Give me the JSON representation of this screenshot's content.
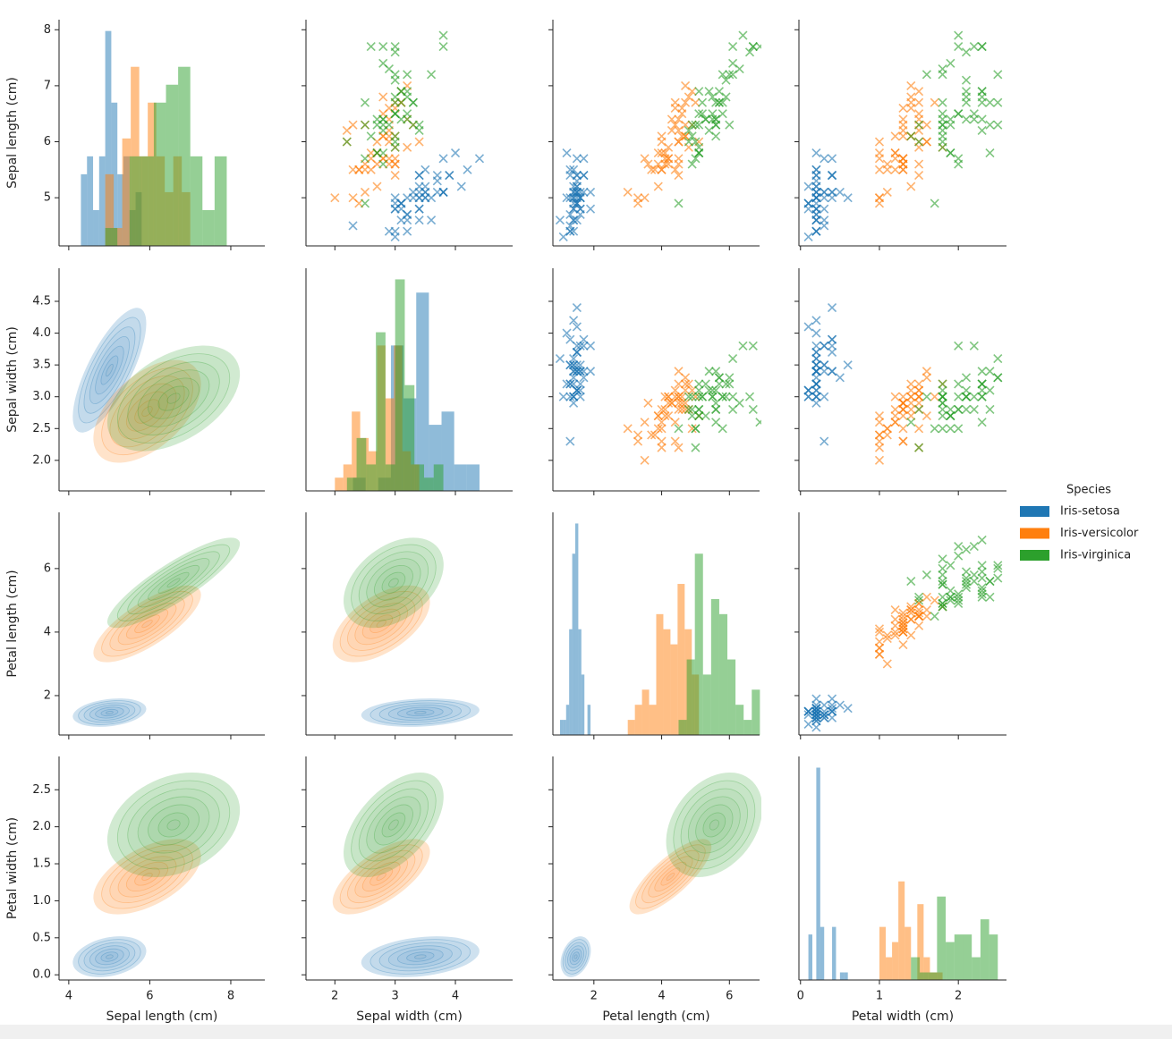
{
  "chart_data": {
    "type": "pairplot",
    "variables": [
      "Sepal length (cm)",
      "Sepal width (cm)",
      "Petal length (cm)",
      "Petal width (cm)"
    ],
    "legend_title": "Species",
    "xaxes": [
      {
        "lim": [
          3.76,
          8.84
        ],
        "ticks": [
          4,
          6,
          8
        ]
      },
      {
        "lim": [
          1.52,
          4.95
        ],
        "ticks": [
          2,
          3,
          4
        ]
      },
      {
        "lim": [
          0.79,
          6.89
        ],
        "ticks": [
          2,
          4,
          6
        ]
      },
      {
        "lim": [
          -0.02,
          2.61
        ],
        "ticks": [
          0,
          1,
          2
        ]
      }
    ],
    "yaxes": [
      {
        "lim": [
          4.14,
          8.18
        ],
        "ticks": [
          5,
          6,
          7,
          8
        ]
      },
      {
        "lim": [
          1.52,
          5.02
        ],
        "ticks": [
          {
            "value": 2,
            "label": "2.0"
          },
          2.5,
          {
            "value": 3,
            "label": "3.0"
          },
          3.5,
          {
            "value": 4,
            "label": "4.0"
          },
          4.5
        ]
      },
      {
        "lim": [
          0.76,
          7.77
        ],
        "ticks": [
          2,
          4,
          6
        ]
      },
      {
        "lim": [
          -0.07,
          2.95
        ],
        "ticks": [
          {
            "value": 0,
            "label": "0.0"
          },
          0.5,
          {
            "value": 1,
            "label": "1.0"
          },
          1.5,
          {
            "value": 2,
            "label": "2.0"
          },
          2.5
        ]
      }
    ],
    "series": [
      {
        "name": "Iris-setosa",
        "color": "#1f77b4",
        "values": [
          [
            5.1,
            3.5,
            1.4,
            0.2
          ],
          [
            4.9,
            3.0,
            1.4,
            0.2
          ],
          [
            4.7,
            3.2,
            1.3,
            0.2
          ],
          [
            4.6,
            3.1,
            1.5,
            0.2
          ],
          [
            5.0,
            3.6,
            1.4,
            0.2
          ],
          [
            5.4,
            3.9,
            1.7,
            0.4
          ],
          [
            4.6,
            3.4,
            1.4,
            0.3
          ],
          [
            5.0,
            3.4,
            1.5,
            0.2
          ],
          [
            4.4,
            2.9,
            1.4,
            0.2
          ],
          [
            4.9,
            3.1,
            1.5,
            0.1
          ],
          [
            5.4,
            3.7,
            1.5,
            0.2
          ],
          [
            4.8,
            3.4,
            1.6,
            0.2
          ],
          [
            4.8,
            3.0,
            1.4,
            0.1
          ],
          [
            4.3,
            3.0,
            1.1,
            0.1
          ],
          [
            5.8,
            4.0,
            1.2,
            0.2
          ],
          [
            5.7,
            4.4,
            1.5,
            0.4
          ],
          [
            5.4,
            3.9,
            1.3,
            0.4
          ],
          [
            5.1,
            3.5,
            1.4,
            0.3
          ],
          [
            5.7,
            3.8,
            1.7,
            0.3
          ],
          [
            5.1,
            3.8,
            1.5,
            0.3
          ],
          [
            5.4,
            3.4,
            1.7,
            0.2
          ],
          [
            5.1,
            3.7,
            1.5,
            0.4
          ],
          [
            4.6,
            3.6,
            1.0,
            0.2
          ],
          [
            5.1,
            3.3,
            1.7,
            0.5
          ],
          [
            4.8,
            3.4,
            1.9,
            0.2
          ],
          [
            5.0,
            3.0,
            1.6,
            0.2
          ],
          [
            5.0,
            3.4,
            1.6,
            0.4
          ],
          [
            5.2,
            3.5,
            1.5,
            0.2
          ],
          [
            5.2,
            3.4,
            1.4,
            0.2
          ],
          [
            4.7,
            3.2,
            1.6,
            0.2
          ],
          [
            4.8,
            3.1,
            1.6,
            0.2
          ],
          [
            5.4,
            3.4,
            1.5,
            0.4
          ],
          [
            5.2,
            4.1,
            1.5,
            0.1
          ],
          [
            5.5,
            4.2,
            1.4,
            0.2
          ],
          [
            4.9,
            3.1,
            1.5,
            0.1
          ],
          [
            5.0,
            3.2,
            1.2,
            0.2
          ],
          [
            5.5,
            3.5,
            1.3,
            0.2
          ],
          [
            4.9,
            3.1,
            1.5,
            0.1
          ],
          [
            4.4,
            3.0,
            1.3,
            0.2
          ],
          [
            5.1,
            3.4,
            1.5,
            0.2
          ],
          [
            5.0,
            3.5,
            1.3,
            0.3
          ],
          [
            4.5,
            2.3,
            1.3,
            0.3
          ],
          [
            4.4,
            3.2,
            1.3,
            0.2
          ],
          [
            5.0,
            3.5,
            1.6,
            0.6
          ],
          [
            5.1,
            3.8,
            1.9,
            0.4
          ],
          [
            4.8,
            3.0,
            1.4,
            0.3
          ],
          [
            5.1,
            3.8,
            1.6,
            0.2
          ],
          [
            4.6,
            3.2,
            1.4,
            0.2
          ],
          [
            5.3,
            3.7,
            1.5,
            0.2
          ],
          [
            5.0,
            3.3,
            1.4,
            0.2
          ]
        ]
      },
      {
        "name": "Iris-versicolor",
        "color": "#ff7f0e",
        "values": [
          [
            7.0,
            3.2,
            4.7,
            1.4
          ],
          [
            6.4,
            3.2,
            4.5,
            1.5
          ],
          [
            6.9,
            3.1,
            4.9,
            1.5
          ],
          [
            5.5,
            2.3,
            4.0,
            1.3
          ],
          [
            6.5,
            2.8,
            4.6,
            1.5
          ],
          [
            5.7,
            2.8,
            4.5,
            1.3
          ],
          [
            6.3,
            3.3,
            4.7,
            1.6
          ],
          [
            4.9,
            2.4,
            3.3,
            1.0
          ],
          [
            6.6,
            2.9,
            4.6,
            1.3
          ],
          [
            5.2,
            2.7,
            3.9,
            1.4
          ],
          [
            5.0,
            2.0,
            3.5,
            1.0
          ],
          [
            5.9,
            3.0,
            4.2,
            1.5
          ],
          [
            6.0,
            2.2,
            4.0,
            1.0
          ],
          [
            6.1,
            2.9,
            4.7,
            1.4
          ],
          [
            5.6,
            2.9,
            3.6,
            1.3
          ],
          [
            6.7,
            3.1,
            4.4,
            1.4
          ],
          [
            5.6,
            3.0,
            4.5,
            1.5
          ],
          [
            5.8,
            2.7,
            4.1,
            1.0
          ],
          [
            6.2,
            2.2,
            4.5,
            1.5
          ],
          [
            5.6,
            2.5,
            3.9,
            1.1
          ],
          [
            5.9,
            3.2,
            4.8,
            1.8
          ],
          [
            6.1,
            2.8,
            4.0,
            1.3
          ],
          [
            6.3,
            2.5,
            4.9,
            1.5
          ],
          [
            6.1,
            2.8,
            4.7,
            1.2
          ],
          [
            6.4,
            2.9,
            4.3,
            1.3
          ],
          [
            6.6,
            3.0,
            4.4,
            1.4
          ],
          [
            6.8,
            2.8,
            4.8,
            1.4
          ],
          [
            6.7,
            3.0,
            5.0,
            1.7
          ],
          [
            6.0,
            2.9,
            4.5,
            1.5
          ],
          [
            5.7,
            2.6,
            3.5,
            1.0
          ],
          [
            5.5,
            2.4,
            3.8,
            1.1
          ],
          [
            5.5,
            2.4,
            3.7,
            1.0
          ],
          [
            5.8,
            2.7,
            3.9,
            1.2
          ],
          [
            6.0,
            2.7,
            5.1,
            1.6
          ],
          [
            5.4,
            3.0,
            4.5,
            1.5
          ],
          [
            6.0,
            3.4,
            4.5,
            1.6
          ],
          [
            6.7,
            3.1,
            4.7,
            1.5
          ],
          [
            6.3,
            2.3,
            4.4,
            1.3
          ],
          [
            5.6,
            3.0,
            4.1,
            1.3
          ],
          [
            5.5,
            2.5,
            4.0,
            1.3
          ],
          [
            5.5,
            2.6,
            4.4,
            1.2
          ],
          [
            6.1,
            3.0,
            4.6,
            1.4
          ],
          [
            5.8,
            2.6,
            4.0,
            1.2
          ],
          [
            5.0,
            2.3,
            3.3,
            1.0
          ],
          [
            5.6,
            2.7,
            4.2,
            1.3
          ],
          [
            5.7,
            3.0,
            4.2,
            1.2
          ],
          [
            5.7,
            2.9,
            4.2,
            1.3
          ],
          [
            6.2,
            2.9,
            4.3,
            1.3
          ],
          [
            5.1,
            2.5,
            3.0,
            1.1
          ],
          [
            5.7,
            2.8,
            4.1,
            1.3
          ]
        ]
      },
      {
        "name": "Iris-virginica",
        "color": "#2ca02c",
        "values": [
          [
            6.3,
            3.3,
            6.0,
            2.5
          ],
          [
            5.8,
            2.7,
            5.1,
            1.9
          ],
          [
            7.1,
            3.0,
            5.9,
            2.1
          ],
          [
            6.3,
            2.9,
            5.6,
            1.8
          ],
          [
            6.5,
            3.0,
            5.8,
            2.2
          ],
          [
            7.6,
            3.0,
            6.6,
            2.1
          ],
          [
            4.9,
            2.5,
            4.5,
            1.7
          ],
          [
            7.3,
            2.9,
            6.3,
            1.8
          ],
          [
            6.7,
            2.5,
            5.8,
            1.8
          ],
          [
            7.2,
            3.6,
            6.1,
            2.5
          ],
          [
            6.5,
            3.2,
            5.1,
            2.0
          ],
          [
            6.4,
            2.7,
            5.3,
            1.9
          ],
          [
            6.8,
            3.0,
            5.5,
            2.1
          ],
          [
            5.7,
            2.5,
            5.0,
            2.0
          ],
          [
            5.8,
            2.8,
            5.1,
            2.4
          ],
          [
            6.4,
            3.2,
            5.3,
            2.3
          ],
          [
            6.5,
            3.0,
            5.5,
            1.8
          ],
          [
            7.7,
            3.8,
            6.7,
            2.2
          ],
          [
            7.7,
            2.6,
            6.9,
            2.3
          ],
          [
            6.0,
            2.2,
            5.0,
            1.5
          ],
          [
            6.9,
            3.2,
            5.7,
            2.3
          ],
          [
            5.6,
            2.8,
            4.9,
            2.0
          ],
          [
            7.7,
            2.8,
            6.7,
            2.0
          ],
          [
            6.3,
            2.7,
            4.9,
            1.8
          ],
          [
            6.7,
            3.3,
            5.7,
            2.1
          ],
          [
            7.2,
            3.2,
            6.0,
            1.8
          ],
          [
            6.2,
            2.8,
            4.8,
            1.8
          ],
          [
            6.1,
            3.0,
            4.9,
            1.8
          ],
          [
            6.4,
            2.8,
            5.6,
            2.1
          ],
          [
            7.2,
            3.0,
            5.8,
            1.6
          ],
          [
            7.4,
            2.8,
            6.1,
            1.9
          ],
          [
            7.9,
            3.8,
            6.4,
            2.0
          ],
          [
            6.4,
            2.8,
            5.6,
            2.2
          ],
          [
            6.3,
            2.8,
            5.1,
            1.5
          ],
          [
            6.1,
            2.6,
            5.6,
            1.4
          ],
          [
            7.7,
            3.0,
            6.1,
            2.3
          ],
          [
            6.3,
            3.4,
            5.6,
            2.4
          ],
          [
            6.4,
            3.1,
            5.5,
            1.8
          ],
          [
            6.0,
            3.0,
            4.8,
            1.8
          ],
          [
            6.9,
            3.1,
            5.4,
            2.1
          ],
          [
            6.7,
            3.1,
            5.6,
            2.4
          ],
          [
            6.9,
            3.1,
            5.1,
            2.3
          ],
          [
            5.8,
            2.7,
            5.1,
            1.9
          ],
          [
            6.8,
            3.2,
            5.9,
            2.3
          ],
          [
            6.7,
            3.3,
            5.7,
            2.5
          ],
          [
            6.7,
            3.0,
            5.2,
            2.3
          ],
          [
            6.3,
            2.5,
            5.0,
            1.9
          ],
          [
            6.5,
            3.0,
            5.2,
            2.0
          ],
          [
            6.2,
            3.4,
            5.4,
            2.3
          ],
          [
            5.9,
            3.0,
            5.1,
            1.8
          ]
        ]
      }
    ]
  }
}
